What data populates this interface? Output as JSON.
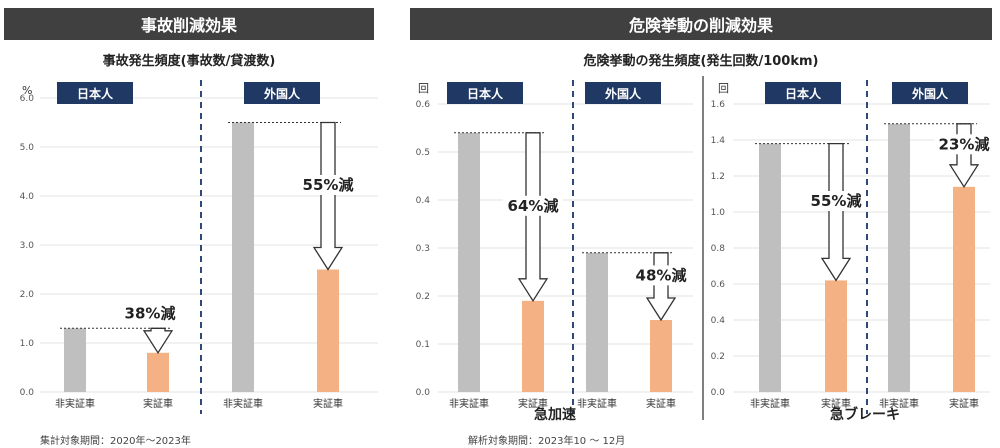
{
  "sections": [
    {
      "title": "事故削減効果",
      "subtitle": "事故発生頻度(事故数/貸渡数)",
      "note": "集計対象期間：2020年～2023年"
    },
    {
      "title": "危険挙動の削減効果",
      "subtitle": "危険挙動の発生頻度(発生回数/100km)",
      "note": "解析対象期間：2023年10 ～ 12月"
    }
  ],
  "colors": {
    "header_bg": "#404040",
    "label_bg": "#1f3864",
    "gray": "#bfbfbf",
    "orange": "#f4b183",
    "divider": "#2e4a7d"
  },
  "chart_data": [
    {
      "type": "bar",
      "ylabel": "%",
      "ylim": [
        0,
        6.0
      ],
      "yticks": [
        "0.0",
        "1.0",
        "2.0",
        "3.0",
        "4.0",
        "5.0",
        "6.0"
      ],
      "groups": [
        {
          "label": "日本人",
          "categories": [
            "非実証車",
            "実証車"
          ],
          "values": [
            1.3,
            0.8
          ],
          "reduction": "38%減"
        },
        {
          "label": "外国人",
          "categories": [
            "非実証車",
            "実証車"
          ],
          "values": [
            5.5,
            2.5
          ],
          "reduction": "55%減"
        }
      ]
    },
    {
      "type": "bar",
      "ylabel": "回",
      "xlabel": "急加速",
      "ylim": [
        0,
        0.6
      ],
      "yticks": [
        "0.0",
        "0.1",
        "0.2",
        "0.3",
        "0.4",
        "0.5",
        "0.6"
      ],
      "groups": [
        {
          "label": "日本人",
          "categories": [
            "非実証車",
            "実証車"
          ],
          "values": [
            0.54,
            0.19
          ],
          "reduction": "64%減"
        },
        {
          "label": "外国人",
          "categories": [
            "非実証車",
            "実証車"
          ],
          "values": [
            0.29,
            0.15
          ],
          "reduction": "48%減"
        }
      ]
    },
    {
      "type": "bar",
      "ylabel": "回",
      "xlabel": "急ブレーキ",
      "ylim": [
        0,
        1.6
      ],
      "yticks": [
        "0.0",
        "0.2",
        "0.4",
        "0.6",
        "0.8",
        "1.0",
        "1.2",
        "1.4",
        "1.6"
      ],
      "groups": [
        {
          "label": "日本人",
          "categories": [
            "非実証車",
            "実証車"
          ],
          "values": [
            1.38,
            0.62
          ],
          "reduction": "55%減"
        },
        {
          "label": "外国人",
          "categories": [
            "非実証車",
            "実証車"
          ],
          "values": [
            1.49,
            1.14
          ],
          "reduction": "23%減"
        }
      ]
    }
  ]
}
